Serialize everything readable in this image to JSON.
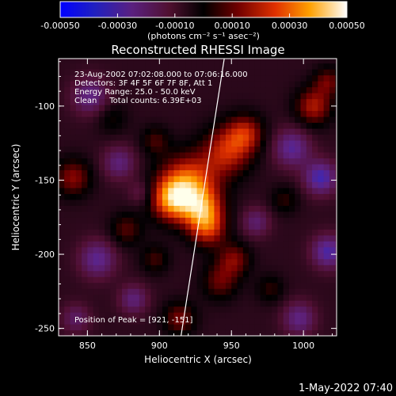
{
  "chart_data": {
    "type": "heatmap",
    "title": "Reconstructed RHESSI Image",
    "xlabel": "Heliocentric X (arcsec)",
    "ylabel": "Heliocentric Y (arcsec)",
    "xlim": [
      830,
      1023
    ],
    "ylim": [
      -255,
      -68
    ],
    "x_ticks": [
      850,
      900,
      950,
      1000
    ],
    "y_ticks": [
      -250,
      -200,
      -150,
      -100
    ],
    "colorbar": {
      "label": "(photons cm⁻² s⁻¹ asec⁻²)",
      "range": [
        -0.0005,
        0.0005
      ],
      "ticks": [
        "-0.00050",
        "-0.00030",
        "-0.00010",
        "0.00010",
        "0.00030",
        "0.00050"
      ]
    },
    "annotations": [
      "23-Aug-2002 07:02:08.000 to 07:06:16.000",
      "Detectors: 3F 4F 5F 6F 7F 8F, Att 1",
      "Energy Range: 25.0 - 50.0 keV",
      "Clean     Total counts: 6.39E+03"
    ],
    "peak_text": "Position of Peak = [921, -151]",
    "peak": [
      921,
      -151
    ],
    "limb_line": [
      [
        915,
        -255
      ],
      [
        945,
        -68
      ]
    ],
    "blobs": [
      {
        "x": 918,
        "y": -155,
        "r": 14,
        "v": 0.0004
      },
      {
        "x": 906,
        "y": -165,
        "r": 10,
        "v": 0.00032
      },
      {
        "x": 928,
        "y": -172,
        "r": 10,
        "v": 0.0003
      },
      {
        "x": 945,
        "y": -132,
        "r": 12,
        "v": 0.00028
      },
      {
        "x": 958,
        "y": -120,
        "r": 9,
        "v": 0.00024
      },
      {
        "x": 932,
        "y": -185,
        "r": 9,
        "v": 0.00024
      },
      {
        "x": 950,
        "y": -205,
        "r": 8,
        "v": 0.0002
      },
      {
        "x": 940,
        "y": -220,
        "r": 9,
        "v": 0.00018
      },
      {
        "x": 1005,
        "y": -102,
        "r": 9,
        "v": 0.00026
      },
      {
        "x": 1015,
        "y": -85,
        "r": 7,
        "v": 0.00018
      },
      {
        "x": 838,
        "y": -150,
        "r": 9,
        "v": 0.00022
      },
      {
        "x": 875,
        "y": -185,
        "r": 8,
        "v": 0.00016
      },
      {
        "x": 895,
        "y": -205,
        "r": 7,
        "v": 0.00014
      },
      {
        "x": 912,
        "y": -245,
        "r": 8,
        "v": 0.0002
      },
      {
        "x": 985,
        "y": -165,
        "r": 7,
        "v": 0.00012
      },
      {
        "x": 975,
        "y": -225,
        "r": 7,
        "v": 0.00012
      },
      {
        "x": 865,
        "y": -110,
        "r": 8,
        "v": 0.0001
      },
      {
        "x": 895,
        "y": -125,
        "r": 7,
        "v": 0.00014
      },
      {
        "x": 870,
        "y": -140,
        "r": 8,
        "v": -0.0002
      },
      {
        "x": 850,
        "y": -95,
        "r": 9,
        "v": -0.00022
      },
      {
        "x": 990,
        "y": -130,
        "r": 9,
        "v": -0.00025
      },
      {
        "x": 1010,
        "y": -150,
        "r": 8,
        "v": -0.0003
      },
      {
        "x": 1015,
        "y": -200,
        "r": 8,
        "v": -0.00028
      },
      {
        "x": 965,
        "y": -180,
        "r": 7,
        "v": -0.00018
      },
      {
        "x": 855,
        "y": -205,
        "r": 9,
        "v": -0.00024
      },
      {
        "x": 880,
        "y": -232,
        "r": 7,
        "v": -0.0002
      },
      {
        "x": 995,
        "y": -245,
        "r": 8,
        "v": -0.00022
      },
      {
        "x": 840,
        "y": -245,
        "r": 7,
        "v": -0.00016
      },
      {
        "x": 885,
        "y": -160,
        "r": 6,
        "v": -0.00012
      }
    ]
  },
  "footer": {
    "timestamp": "1-May-2022 07:40"
  }
}
